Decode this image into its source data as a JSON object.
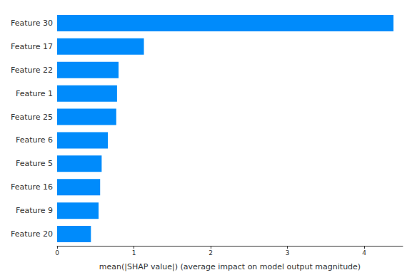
{
  "chart_data": {
    "type": "bar",
    "orientation": "horizontal",
    "x_label": "mean(|SHAP value|) (average impact on model output magnitude)",
    "categories": [
      "Feature 30",
      "Feature 17",
      "Feature 22",
      "Feature 1",
      "Feature 25",
      "Feature 6",
      "Feature 5",
      "Feature 16",
      "Feature 9",
      "Feature 20"
    ],
    "values": [
      4.38,
      1.13,
      0.8,
      0.78,
      0.77,
      0.66,
      0.58,
      0.56,
      0.54,
      0.44
    ],
    "color": "#008bfb",
    "xlim": [
      0,
      4.5
    ],
    "xticks": [
      0,
      1,
      2,
      3,
      4
    ],
    "grid": false
  }
}
